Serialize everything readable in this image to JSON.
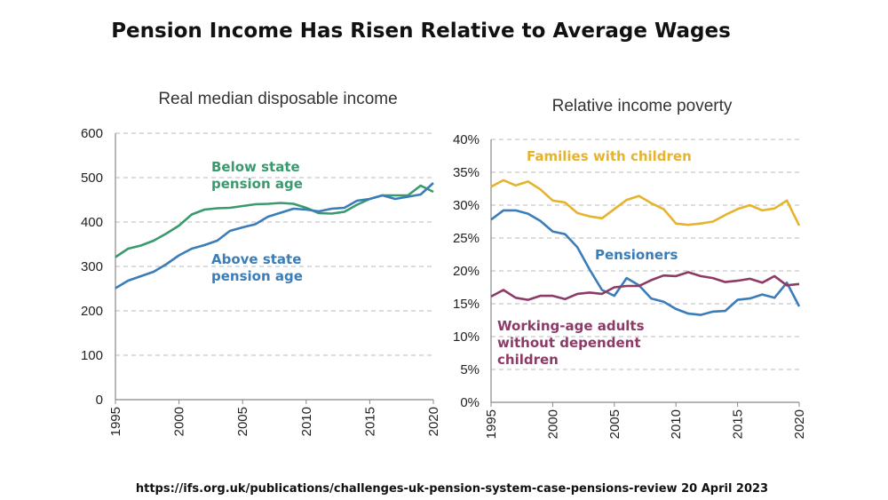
{
  "title": "Pension Income Has Risen Relative to Average Wages",
  "source": "https://ifs.org.uk/publications/challenges-uk-pension-system-case-pensions-review  20 April 2023",
  "colors": {
    "green": "#3a9a6e",
    "blue": "#3a7db9",
    "yellow": "#e6b32d",
    "maroon": "#8e3a67",
    "grid": "#c8c8c8"
  },
  "chart_data": [
    {
      "type": "line",
      "title": "Real median disposable income",
      "xlabel": "",
      "ylabel": "",
      "xlim": [
        1995,
        2020
      ],
      "ylim": [
        0,
        600
      ],
      "yticks": [
        "0",
        "100",
        "200",
        "300",
        "400",
        "500",
        "600"
      ],
      "xticks": [
        "1995",
        "2000",
        "2005",
        "2010",
        "2015",
        "2020"
      ],
      "grid": true,
      "x": [
        1995,
        1996,
        1997,
        1998,
        1999,
        2000,
        2001,
        2002,
        2003,
        2004,
        2005,
        2006,
        2007,
        2008,
        2009,
        2010,
        2011,
        2012,
        2013,
        2014,
        2015,
        2016,
        2017,
        2018,
        2019,
        2020
      ],
      "series": [
        {
          "name": "Below state pension age",
          "label_lines": [
            "Below state",
            "pension age"
          ],
          "color": "#3a9a6e",
          "values": [
            321,
            340,
            347,
            358,
            374,
            392,
            417,
            428,
            431,
            432,
            436,
            440,
            441,
            443,
            441,
            432,
            420,
            419,
            423,
            439,
            452,
            460,
            460,
            460,
            482,
            468
          ]
        },
        {
          "name": "Above state pension age",
          "label_lines": [
            "Above state",
            "pension age"
          ],
          "color": "#3a7db9",
          "values": [
            251,
            268,
            278,
            288,
            305,
            325,
            340,
            348,
            358,
            380,
            388,
            395,
            412,
            421,
            430,
            428,
            424,
            430,
            432,
            448,
            452,
            460,
            452,
            457,
            462,
            488
          ]
        }
      ]
    },
    {
      "type": "line",
      "title": "Relative income poverty",
      "xlabel": "",
      "ylabel": "",
      "xlim": [
        1995,
        2020
      ],
      "ylim": [
        0,
        40
      ],
      "yticks": [
        "0%",
        "5%",
        "10%",
        "15%",
        "20%",
        "25%",
        "30%",
        "35%",
        "40%"
      ],
      "xticks": [
        "1995",
        "2000",
        "2005",
        "2010",
        "2015",
        "2020"
      ],
      "grid": true,
      "x": [
        1995,
        1996,
        1997,
        1998,
        1999,
        2000,
        2001,
        2002,
        2003,
        2004,
        2005,
        2006,
        2007,
        2008,
        2009,
        2010,
        2011,
        2012,
        2013,
        2014,
        2015,
        2016,
        2017,
        2018,
        2019,
        2020
      ],
      "series": [
        {
          "name": "Families with children",
          "label_lines": [
            "Families with children"
          ],
          "color": "#e6b32d",
          "values": [
            32.8,
            33.8,
            33.0,
            33.6,
            32.4,
            30.7,
            30.4,
            28.8,
            28.3,
            28.0,
            29.4,
            30.8,
            31.4,
            30.3,
            29.4,
            27.2,
            27.0,
            27.2,
            27.5,
            28.5,
            29.4,
            30.0,
            29.2,
            29.5,
            30.7,
            26.9
          ]
        },
        {
          "name": "Pensioners",
          "label_lines": [
            "Pensioners"
          ],
          "color": "#3a7db9",
          "values": [
            27.8,
            29.2,
            29.2,
            28.7,
            27.6,
            26.0,
            25.6,
            23.6,
            20.2,
            17.1,
            16.2,
            18.9,
            17.8,
            15.8,
            15.3,
            14.2,
            13.5,
            13.3,
            13.8,
            13.9,
            15.6,
            15.8,
            16.4,
            15.9,
            18.2,
            14.6
          ]
        },
        {
          "name": "Working-age adults without dependent children",
          "label_lines": [
            "Working-age adults",
            "without dependent",
            "children"
          ],
          "color": "#8e3a67",
          "values": [
            16.1,
            17.1,
            15.9,
            15.6,
            16.2,
            16.2,
            15.7,
            16.5,
            16.7,
            16.5,
            17.5,
            17.7,
            17.7,
            18.6,
            19.3,
            19.2,
            19.8,
            19.2,
            18.9,
            18.3,
            18.5,
            18.8,
            18.2,
            19.2,
            17.8,
            18.0
          ]
        }
      ]
    }
  ]
}
